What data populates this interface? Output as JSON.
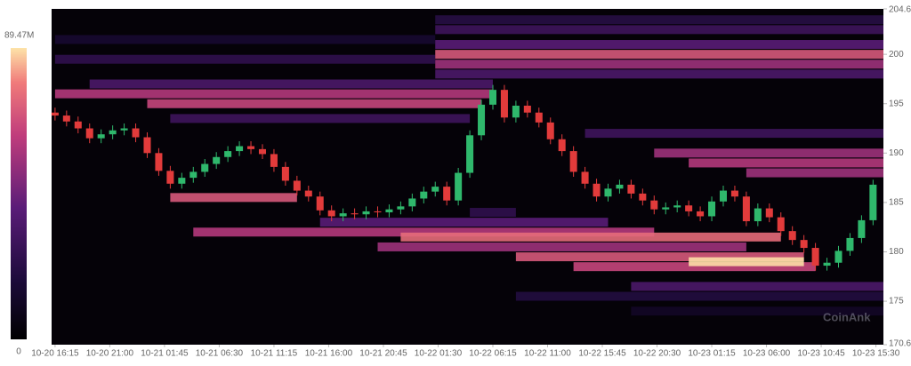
{
  "chart_data": {
    "type": "heatmap-candlestick",
    "watermark": "CoinAnk",
    "xlim": [
      -0.3,
      71.9
    ],
    "xticks": [
      {
        "value": 0,
        "label": "10-20 16:15"
      },
      {
        "value": 4.75,
        "label": "10-20 21:00"
      },
      {
        "value": 9.5,
        "label": "10-21 01:45"
      },
      {
        "value": 14.25,
        "label": "10-21 06:30"
      },
      {
        "value": 19,
        "label": "10-21 11:15"
      },
      {
        "value": 23.75,
        "label": "10-21 16:00"
      },
      {
        "value": 28.5,
        "label": "10-21 20:45"
      },
      {
        "value": 33.25,
        "label": "10-22 01:30"
      },
      {
        "value": 38,
        "label": "10-22 06:15"
      },
      {
        "value": 42.75,
        "label": "10-22 11:00"
      },
      {
        "value": 47.5,
        "label": "10-22 15:45"
      },
      {
        "value": 52.25,
        "label": "10-22 20:30"
      },
      {
        "value": 57,
        "label": "10-23 01:15"
      },
      {
        "value": 61.75,
        "label": "10-23 06:00"
      },
      {
        "value": 66.5,
        "label": "10-23 10:45"
      },
      {
        "value": 71.25,
        "label": "10-23 15:30"
      }
    ],
    "ylim": [
      170.6,
      204.6
    ],
    "yticks": [
      170.6,
      175,
      180,
      185,
      190,
      195,
      200,
      204.6
    ],
    "colorscale": {
      "range": [
        0,
        89.47
      ],
      "ticks": [
        0,
        {
          "value": 89.47,
          "label": "89.47M"
        }
      ]
    },
    "up_color": "#2fb86c",
    "down_color": "#e23b3b",
    "bands": [
      {
        "price": 203.5,
        "x_start": 33,
        "x_end": 72,
        "value": 22
      },
      {
        "price": 202.5,
        "x_start": 33,
        "x_end": 72,
        "value": 30
      },
      {
        "price": 201.5,
        "x_start": 0,
        "x_end": 33,
        "value": 15
      },
      {
        "price": 201,
        "x_start": 33,
        "x_end": 72,
        "value": 40
      },
      {
        "price": 199.5,
        "x_start": 0,
        "x_end": 33,
        "value": 25
      },
      {
        "price": 199,
        "x_start": 33,
        "x_end": 72,
        "value": 55
      },
      {
        "price": 198,
        "x_start": 33,
        "x_end": 72,
        "value": 35
      },
      {
        "price": 200,
        "x_start": 33,
        "x_end": 72,
        "value": 70
      },
      {
        "price": 197,
        "x_start": 3,
        "x_end": 38,
        "value": 35
      },
      {
        "price": 196,
        "x_start": 0,
        "x_end": 38,
        "value": 60
      },
      {
        "price": 195,
        "x_start": 8,
        "x_end": 37,
        "value": 65
      },
      {
        "price": 193.5,
        "x_start": 10,
        "x_end": 36,
        "value": 30
      },
      {
        "price": 192,
        "x_start": 46,
        "x_end": 72,
        "value": 30
      },
      {
        "price": 190,
        "x_start": 52,
        "x_end": 72,
        "value": 55
      },
      {
        "price": 189,
        "x_start": 55,
        "x_end": 72,
        "value": 60
      },
      {
        "price": 188,
        "x_start": 60,
        "x_end": 72,
        "value": 55
      },
      {
        "price": 184,
        "x_start": 36,
        "x_end": 40,
        "value": 25
      },
      {
        "price": 185.5,
        "x_start": 10,
        "x_end": 21,
        "value": 70
      },
      {
        "price": 183,
        "x_start": 23,
        "x_end": 48,
        "value": 40
      },
      {
        "price": 182,
        "x_start": 12,
        "x_end": 52,
        "value": 60
      },
      {
        "price": 181.5,
        "x_start": 30,
        "x_end": 63,
        "value": 75
      },
      {
        "price": 180.5,
        "x_start": 28,
        "x_end": 60,
        "value": 55
      },
      {
        "price": 179.5,
        "x_start": 40,
        "x_end": 65,
        "value": 70
      },
      {
        "price": 178.5,
        "x_start": 45,
        "x_end": 66,
        "value": 65
      },
      {
        "price": 179,
        "x_start": 55,
        "x_end": 65,
        "value": 89
      },
      {
        "price": 176.5,
        "x_start": 50,
        "x_end": 72,
        "value": 35
      },
      {
        "price": 175.5,
        "x_start": 40,
        "x_end": 72,
        "value": 20
      },
      {
        "price": 174,
        "x_start": 50,
        "x_end": 72,
        "value": 12
      }
    ],
    "candles": {
      "x": [
        0,
        1,
        2,
        3,
        4,
        5,
        6,
        7,
        8,
        9,
        10,
        11,
        12,
        13,
        14,
        15,
        16,
        17,
        18,
        19,
        20,
        21,
        22,
        23,
        24,
        25,
        26,
        27,
        28,
        29,
        30,
        31,
        32,
        33,
        34,
        35,
        36,
        37,
        38,
        39,
        40,
        41,
        42,
        43,
        44,
        45,
        46,
        47,
        48,
        49,
        50,
        51,
        52,
        53,
        54,
        55,
        56,
        57,
        58,
        59,
        60,
        61,
        62,
        63,
        64,
        65,
        66,
        67,
        68,
        69,
        70,
        71
      ],
      "open": [
        194.1,
        193.8,
        193.2,
        192.5,
        191.5,
        191.9,
        192.3,
        192.5,
        191.6,
        190.0,
        188.2,
        186.9,
        187.5,
        188.1,
        188.9,
        189.6,
        190.2,
        190.7,
        190.4,
        189.9,
        188.6,
        187.2,
        186.2,
        185.6,
        184.2,
        183.6,
        183.9,
        183.8,
        184.1,
        184.0,
        184.3,
        184.6,
        185.4,
        186.1,
        186.6,
        185.2,
        188.0,
        191.8,
        194.9,
        196.4,
        193.6,
        194.8,
        194.1,
        193.1,
        191.4,
        190.2,
        188.1,
        186.9,
        185.6,
        186.4,
        186.8,
        185.9,
        185.2,
        184.3,
        184.5,
        184.7,
        184.1,
        183.6,
        185.1,
        186.2,
        185.6,
        183.1,
        184.4,
        183.5,
        182.1,
        181.2,
        180.4,
        178.6,
        178.9,
        180.1,
        181.4,
        183.2
      ],
      "high": [
        194.6,
        194.3,
        193.7,
        193.0,
        192.4,
        192.8,
        193.0,
        193.0,
        192.1,
        190.5,
        188.7,
        188.0,
        188.6,
        189.4,
        190.1,
        190.7,
        191.2,
        191.2,
        190.9,
        190.4,
        189.1,
        187.7,
        186.7,
        186.1,
        184.7,
        184.4,
        184.4,
        184.6,
        184.6,
        184.8,
        185.1,
        185.9,
        186.6,
        187.1,
        187.1,
        188.5,
        192.3,
        195.4,
        196.9,
        196.9,
        195.3,
        195.3,
        194.6,
        193.6,
        191.9,
        190.7,
        188.6,
        187.4,
        186.9,
        187.3,
        187.3,
        186.4,
        185.7,
        185.0,
        185.2,
        185.2,
        184.6,
        185.6,
        186.7,
        186.7,
        186.1,
        184.9,
        184.9,
        184.0,
        182.6,
        181.7,
        180.9,
        179.4,
        180.6,
        181.9,
        183.7,
        187.3
      ],
      "low": [
        193.3,
        192.7,
        192.0,
        191.0,
        191.0,
        191.4,
        191.8,
        191.1,
        189.5,
        187.7,
        186.4,
        186.4,
        187.0,
        187.6,
        188.4,
        189.1,
        189.7,
        189.9,
        189.4,
        188.1,
        186.7,
        185.7,
        185.1,
        183.7,
        183.1,
        183.1,
        183.3,
        183.3,
        183.5,
        183.5,
        183.8,
        184.1,
        184.9,
        185.6,
        184.7,
        184.7,
        187.5,
        191.3,
        194.4,
        193.1,
        193.1,
        193.6,
        192.6,
        190.9,
        189.7,
        187.6,
        186.4,
        185.1,
        185.1,
        185.9,
        185.4,
        184.7,
        183.8,
        183.8,
        184.0,
        183.6,
        183.1,
        183.1,
        184.6,
        185.1,
        182.6,
        182.6,
        183.0,
        181.6,
        180.7,
        179.9,
        178.1,
        178.1,
        178.4,
        179.6,
        180.9,
        182.7
      ],
      "close": [
        193.8,
        193.2,
        192.5,
        191.5,
        191.9,
        192.3,
        192.5,
        191.6,
        190.0,
        188.2,
        186.9,
        187.5,
        188.1,
        188.9,
        189.6,
        190.2,
        190.7,
        190.4,
        189.9,
        188.6,
        187.2,
        186.2,
        185.6,
        184.2,
        183.6,
        183.9,
        183.8,
        184.1,
        184.0,
        184.3,
        184.6,
        185.4,
        186.1,
        186.6,
        185.2,
        188.0,
        191.8,
        194.9,
        196.4,
        193.6,
        194.8,
        194.1,
        193.1,
        191.4,
        190.2,
        188.1,
        186.9,
        185.6,
        186.4,
        186.8,
        185.9,
        185.2,
        184.3,
        184.5,
        184.7,
        184.1,
        183.6,
        185.1,
        186.2,
        185.6,
        183.1,
        184.4,
        183.5,
        182.1,
        181.2,
        180.4,
        178.6,
        178.9,
        180.1,
        181.4,
        183.2,
        186.8
      ]
    }
  }
}
